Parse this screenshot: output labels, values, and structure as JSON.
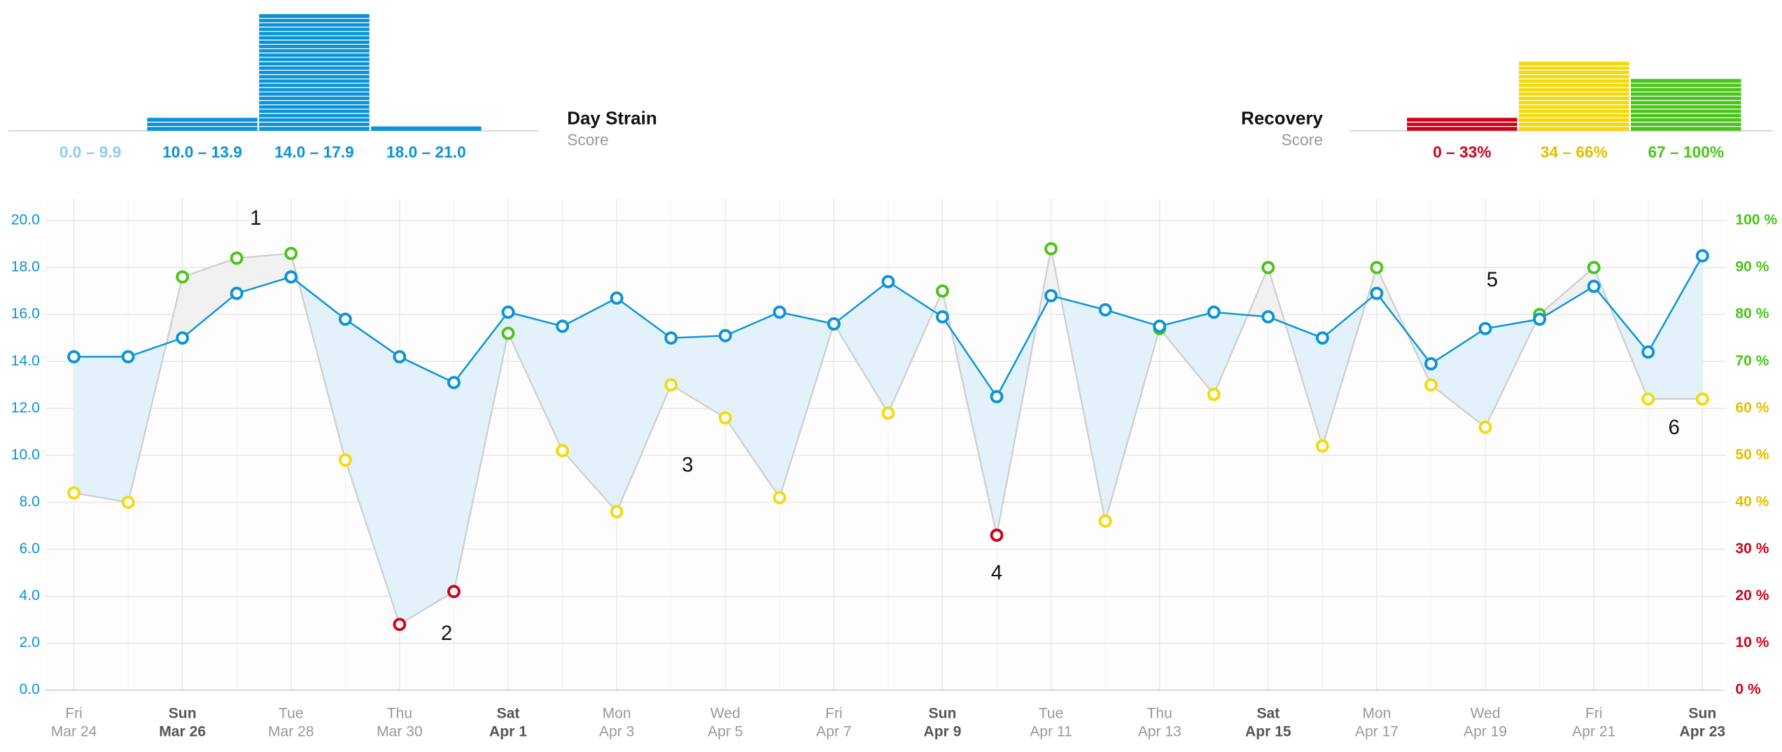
{
  "chart_data": [
    {
      "type": "histogram",
      "title": "Day Strain",
      "subtitle": "Score",
      "categories": [
        "0.0 – 9.9",
        "10.0 – 13.9",
        "14.0 – 17.9",
        "18.0 – 21.0"
      ],
      "values": [
        0,
        3,
        27,
        1
      ],
      "colors": [
        "#0a93d6",
        "#0a93d6",
        "#0a93d6",
        "#0a93d6"
      ],
      "label_colors": [
        "#8fcdee",
        "#0a93d6",
        "#0a93d6",
        "#0a93d6"
      ]
    },
    {
      "type": "histogram",
      "title": "Recovery",
      "subtitle": "Score",
      "categories": [
        "0 – 33%",
        "34 – 66%",
        "67 – 100%"
      ],
      "values": [
        3,
        16,
        12
      ],
      "colors": [
        "#d0021b",
        "#f5d90a",
        "#4ac41a"
      ],
      "label_colors": [
        "#d0021b",
        "#e3bf00",
        "#4ac41a"
      ]
    },
    {
      "type": "line",
      "categories": [
        [
          "Fri",
          "Mar 24"
        ],
        null,
        [
          "Sun",
          "Mar 26"
        ],
        null,
        [
          "Tue",
          "Mar 28"
        ],
        null,
        [
          "Thu",
          "Mar 30"
        ],
        null,
        [
          "Sat",
          "Apr 1"
        ],
        null,
        [
          "Mon",
          "Apr 3"
        ],
        null,
        [
          "Wed",
          "Apr 5"
        ],
        null,
        [
          "Fri",
          "Apr 7"
        ],
        null,
        [
          "Sun",
          "Apr 9"
        ],
        null,
        [
          "Tue",
          "Apr 11"
        ],
        null,
        [
          "Thu",
          "Apr 13"
        ],
        null,
        [
          "Sat",
          "Apr 15"
        ],
        null,
        [
          "Mon",
          "Apr 17"
        ],
        null,
        [
          "Wed",
          "Apr 19"
        ],
        null,
        [
          "Fri",
          "Apr 21"
        ],
        null,
        [
          "Sun",
          "Apr 23"
        ]
      ],
      "emphasized_categories": [
        2,
        8,
        16,
        22,
        30
      ],
      "series": [
        {
          "color": "#0a93d6",
          "values": [
            14.2,
            14.2,
            15.0,
            16.9,
            17.6,
            15.8,
            14.2,
            13.1,
            16.1,
            15.5,
            16.7,
            15.0,
            15.1,
            16.1,
            15.6,
            17.4,
            15.9,
            12.5,
            16.8,
            16.2,
            15.5,
            16.1,
            15.9,
            15.0,
            16.9,
            13.9,
            15.4,
            15.8,
            17.2,
            14.4,
            18.5
          ]
        },
        {
          "axis": "y2",
          "color": "#cccccc",
          "point_colors": [
            "#f5d90a",
            "#f5d90a",
            "#4ac41a",
            "#4ac41a",
            "#4ac41a",
            "#f5d90a",
            "#d0021b",
            "#d0021b",
            "#4ac41a",
            "#f5d90a",
            "#f5d90a",
            "#f5d90a",
            "#f5d90a",
            "#f5d90a",
            "#4ac41a",
            "#f5d90a",
            "#4ac41a",
            "#d0021b",
            "#4ac41a",
            "#f5d90a",
            "#4ac41a",
            "#f5d90a",
            "#4ac41a",
            "#f5d90a",
            "#4ac41a",
            "#f5d90a",
            "#f5d90a",
            "#4ac41a",
            "#4ac41a",
            "#f5d90a",
            "#f5d90a"
          ],
          "values": [
            42,
            40,
            88,
            92,
            93,
            49,
            14,
            21,
            76,
            51,
            38,
            65,
            58,
            41,
            78,
            59,
            85,
            33,
            94,
            36,
            77,
            63,
            90,
            52,
            90,
            65,
            56,
            80,
            90,
            62,
            62
          ]
        }
      ],
      "fill_above": "#e2f1fa",
      "fill_below": "#f1f1f1",
      "ylim": [
        0,
        20
      ],
      "yticks": [
        {
          "value": 0,
          "label": "0.0"
        },
        {
          "value": 2,
          "label": "2.0"
        },
        {
          "value": 4,
          "label": "4.0"
        },
        {
          "value": 6,
          "label": "6.0"
        },
        {
          "value": 8,
          "label": "8.0"
        },
        {
          "value": 10,
          "label": "10.0"
        },
        {
          "value": 12,
          "label": "12.0"
        },
        {
          "value": 14,
          "label": "14.0"
        },
        {
          "value": 16,
          "label": "16.0"
        },
        {
          "value": 18,
          "label": "18.0"
        },
        {
          "value": 20,
          "label": "20.0"
        }
      ],
      "ytick_color": "#0a93d6",
      "y2lim": [
        0,
        100
      ],
      "y2ticks": [
        {
          "value": 0,
          "label": "0 %"
        },
        {
          "value": 10,
          "label": "10 %"
        },
        {
          "value": 20,
          "label": "20 %"
        },
        {
          "value": 30,
          "label": "30 %"
        },
        {
          "value": 40,
          "label": "40 %"
        },
        {
          "value": 50,
          "label": "50 %"
        },
        {
          "value": 60,
          "label": "60 %"
        },
        {
          "value": 70,
          "label": "70 %"
        },
        {
          "value": 80,
          "label": "80 %"
        },
        {
          "value": 90,
          "label": "90 %"
        },
        {
          "value": 100,
          "label": "100 %"
        }
      ],
      "y2tick_colors": [
        "#d0021b",
        "#d0021b",
        "#d0021b",
        "#d0021b",
        "#e3bf00",
        "#e3bf00",
        "#e3bf00",
        "#4ac41a",
        "#4ac41a",
        "#4ac41a",
        "#4ac41a"
      ],
      "grid": true,
      "annotations": [
        "1",
        "2",
        "3",
        "4",
        "5",
        "6"
      ]
    }
  ]
}
